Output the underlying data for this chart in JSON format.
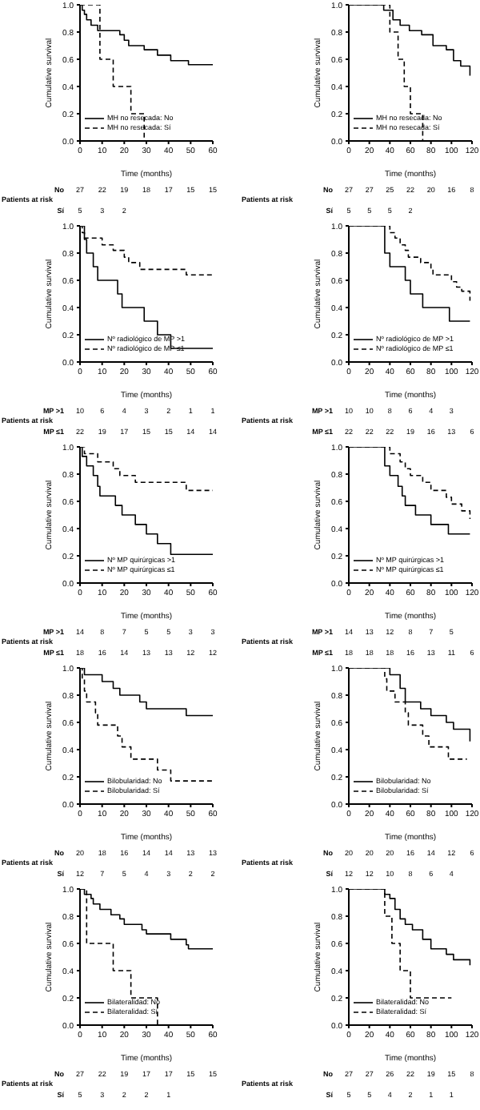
{
  "chart_data": [
    {
      "type": "step",
      "xlabel": "Time (months)",
      "ylabel": "Cumulative survival",
      "xlim": [
        0,
        60
      ],
      "xticks": [
        0,
        10,
        20,
        30,
        40,
        50,
        60
      ],
      "ylim": [
        0,
        1
      ],
      "yticks": [
        {
          "value": 0,
          "label": "0.0"
        },
        {
          "value": 0.2,
          "label": "0.2"
        },
        {
          "value": 0.4,
          "label": "0.4"
        },
        {
          "value": 0.6,
          "label": "0.6"
        },
        {
          "value": 0.8,
          "label": "0.8"
        },
        {
          "value": 1,
          "label": "1.0"
        }
      ],
      "grid": false,
      "legend": "bottom left",
      "marker": "none",
      "series": [
        {
          "name": "MH no resecada: No",
          "color": "#000000",
          "line_style": "solid",
          "x": [
            0,
            1,
            2,
            3,
            5,
            8,
            18,
            20,
            22,
            29,
            35,
            41,
            49,
            60
          ],
          "values": [
            1,
            0.96,
            0.93,
            0.89,
            0.85,
            0.81,
            0.78,
            0.74,
            0.7,
            0.67,
            0.63,
            0.59,
            0.56,
            0.56
          ]
        },
        {
          "name": "MH no resecada: Sí",
          "color": "#000000",
          "line_style": "dashed",
          "x": [
            0,
            9,
            15,
            23,
            29
          ],
          "values": [
            1,
            0.6,
            0.4,
            0.2,
            0
          ]
        }
      ],
      "annotations": [
        "Patients at risk",
        "No\t27\t22\t19\t18\t17\t15\t15",
        "Sí\t5\t3\t2"
      ]
    },
    {
      "type": "step",
      "xlabel": "Time (months)",
      "ylabel": "Cumulative survival",
      "xlim": [
        0,
        120
      ],
      "xticks": [
        0,
        20,
        40,
        60,
        80,
        100,
        120
      ],
      "ylim": [
        0,
        1
      ],
      "yticks": [
        {
          "value": 0,
          "label": "0.0"
        },
        {
          "value": 0.2,
          "label": "0.2"
        },
        {
          "value": 0.4,
          "label": "0.4"
        },
        {
          "value": 0.6,
          "label": "0.6"
        },
        {
          "value": 0.8,
          "label": "0.8"
        },
        {
          "value": 1,
          "label": "1.0"
        }
      ],
      "grid": false,
      "legend": "bottom left",
      "marker": "none",
      "series": [
        {
          "name": "MH no resecada: No",
          "color": "#000000",
          "line_style": "solid",
          "x": [
            0,
            34,
            43,
            50,
            59,
            71,
            82,
            95,
            102,
            109,
            118
          ],
          "values": [
            1,
            0.96,
            0.89,
            0.85,
            0.81,
            0.78,
            0.7,
            0.67,
            0.59,
            0.55,
            0.48
          ]
        },
        {
          "name": "MH no resecada: Sí",
          "color": "#000000",
          "line_style": "dashed",
          "x": [
            0,
            40,
            48,
            54,
            60,
            72
          ],
          "values": [
            1,
            0.8,
            0.6,
            0.4,
            0.2,
            0
          ]
        }
      ],
      "annotations": [
        "Patients at risk",
        "No\t27\t27\t25\t22\t20\t16\t8",
        "Sí\t5\t5\t5\t2"
      ]
    },
    {
      "type": "step",
      "xlabel": "Time (months)",
      "ylabel": "Cumulative survival",
      "xlim": [
        0,
        60
      ],
      "xticks": [
        0,
        10,
        20,
        30,
        40,
        50,
        60
      ],
      "ylim": [
        0,
        1
      ],
      "yticks": [
        {
          "value": 0,
          "label": "0.0"
        },
        {
          "value": 0.2,
          "label": "0.2"
        },
        {
          "value": 0.4,
          "label": "0.4"
        },
        {
          "value": 0.6,
          "label": "0.6"
        },
        {
          "value": 0.8,
          "label": "0.8"
        },
        {
          "value": 1,
          "label": "1.0"
        }
      ],
      "grid": false,
      "legend": "bottom left",
      "marker": "none",
      "series": [
        {
          "name": "Nº radiológico de MP >1",
          "color": "#000000",
          "line_style": "solid",
          "x": [
            0,
            2,
            3,
            6,
            8,
            17,
            19,
            29,
            35,
            41,
            60
          ],
          "values": [
            1,
            0.9,
            0.8,
            0.7,
            0.6,
            0.5,
            0.4,
            0.3,
            0.2,
            0.1,
            0.1
          ]
        },
        {
          "name": "Nº radiológico de MP ≤1",
          "color": "#000000",
          "line_style": "dashed",
          "x": [
            0,
            1,
            2,
            10,
            15,
            20,
            22,
            27,
            48,
            60
          ],
          "values": [
            1,
            0.95,
            0.91,
            0.86,
            0.82,
            0.77,
            0.73,
            0.68,
            0.64,
            0.64
          ]
        }
      ],
      "annotations": [
        "Patients at risk",
        "MP >1\t10\t6\t4\t3\t2\t1\t1",
        "MP ≤1\t22\t19\t17\t15\t15\t14\t14"
      ]
    },
    {
      "type": "step",
      "xlabel": "Time (months)",
      "ylabel": "Cumulative survival",
      "xlim": [
        0,
        120
      ],
      "xticks": [
        0,
        20,
        40,
        60,
        80,
        100,
        120
      ],
      "ylim": [
        0,
        1
      ],
      "yticks": [
        {
          "value": 0,
          "label": "0.0"
        },
        {
          "value": 0.2,
          "label": "0.2"
        },
        {
          "value": 0.4,
          "label": "0.4"
        },
        {
          "value": 0.6,
          "label": "0.6"
        },
        {
          "value": 0.8,
          "label": "0.8"
        },
        {
          "value": 1,
          "label": "1.0"
        }
      ],
      "grid": false,
      "legend": "bottom left",
      "marker": "none",
      "series": [
        {
          "name": "Nº radiológico de MP >1",
          "color": "#000000",
          "line_style": "solid",
          "x": [
            0,
            35,
            40,
            55,
            60,
            72,
            98,
            118
          ],
          "values": [
            1,
            0.8,
            0.7,
            0.6,
            0.5,
            0.4,
            0.3,
            0.3
          ]
        },
        {
          "name": "Nº radiológico de MP ≤1",
          "color": "#000000",
          "line_style": "dashed",
          "x": [
            0,
            40,
            45,
            50,
            55,
            58,
            70,
            80,
            82,
            100,
            105,
            110,
            118
          ],
          "values": [
            1,
            0.95,
            0.91,
            0.86,
            0.82,
            0.77,
            0.73,
            0.68,
            0.64,
            0.59,
            0.55,
            0.52,
            0.45
          ]
        }
      ],
      "annotations": [
        "Patients at risk",
        "MP >1\t10\t10\t8\t6\t4\t3",
        "MP ≤1\t22\t22\t22\t19\t16\t13\t6"
      ]
    },
    {
      "type": "step",
      "xlabel": "Time (months)",
      "ylabel": "Cumulative survival",
      "xlim": [
        0,
        60
      ],
      "xticks": [
        0,
        10,
        20,
        30,
        40,
        50,
        60
      ],
      "ylim": [
        0,
        1
      ],
      "yticks": [
        {
          "value": 0,
          "label": "0.0"
        },
        {
          "value": 0.2,
          "label": "0.2"
        },
        {
          "value": 0.4,
          "label": "0.4"
        },
        {
          "value": 0.6,
          "label": "0.6"
        },
        {
          "value": 0.8,
          "label": "0.8"
        },
        {
          "value": 1,
          "label": "1.0"
        }
      ],
      "grid": false,
      "legend": "bottom left",
      "marker": "none",
      "series": [
        {
          "name": "Nº MP quirúrgicas >1",
          "color": "#000000",
          "line_style": "solid",
          "x": [
            0,
            1,
            3,
            6,
            8,
            9,
            16,
            19,
            25,
            30,
            35,
            41,
            60
          ],
          "values": [
            1,
            0.93,
            0.86,
            0.79,
            0.71,
            0.64,
            0.57,
            0.5,
            0.43,
            0.36,
            0.29,
            0.21,
            0.21
          ]
        },
        {
          "name": "Nº MP quirúrgicas ≤1",
          "color": "#000000",
          "line_style": "dashed",
          "x": [
            0,
            2,
            8,
            15,
            18,
            25,
            48,
            60
          ],
          "values": [
            1,
            0.95,
            0.89,
            0.84,
            0.79,
            0.74,
            0.68,
            0.68
          ]
        }
      ],
      "annotations": [
        "Patients at risk",
        "MP >1\t14\t8\t7\t5\t5\t3\t3",
        "MP ≤1\t18\t16\t14\t13\t13\t12\t12"
      ]
    },
    {
      "type": "step",
      "xlabel": "Time (months)",
      "ylabel": "Cumulative survival",
      "xlim": [
        0,
        120
      ],
      "xticks": [
        0,
        20,
        40,
        60,
        80,
        100,
        120
      ],
      "ylim": [
        0,
        1
      ],
      "yticks": [
        {
          "value": 0,
          "label": "0.0"
        },
        {
          "value": 0.2,
          "label": "0.2"
        },
        {
          "value": 0.4,
          "label": "0.4"
        },
        {
          "value": 0.6,
          "label": "0.6"
        },
        {
          "value": 0.8,
          "label": "0.8"
        },
        {
          "value": 1,
          "label": "1.0"
        }
      ],
      "grid": false,
      "legend": "bottom left",
      "marker": "none",
      "series": [
        {
          "name": "Nº MP quirúrgicas >1",
          "color": "#000000",
          "line_style": "solid",
          "x": [
            0,
            35,
            40,
            48,
            52,
            55,
            65,
            80,
            97,
            118
          ],
          "values": [
            1,
            0.86,
            0.79,
            0.71,
            0.64,
            0.57,
            0.5,
            0.43,
            0.36,
            0.36
          ]
        },
        {
          "name": "Nº MP quirúrgicas ≤1",
          "color": "#000000",
          "line_style": "dashed",
          "x": [
            0,
            40,
            50,
            55,
            60,
            72,
            80,
            95,
            100,
            110,
            118
          ],
          "values": [
            1,
            0.95,
            0.89,
            0.84,
            0.79,
            0.74,
            0.68,
            0.63,
            0.58,
            0.53,
            0.47
          ]
        }
      ],
      "annotations": [
        "Patients at risk",
        "MP >1\t14\t13\t12\t8\t7\t5",
        "MP ≤1\t18\t18\t18\t16\t13\t11\t6"
      ]
    },
    {
      "type": "step",
      "xlabel": "Time (months)",
      "ylabel": "Cumulative survival",
      "xlim": [
        0,
        60
      ],
      "xticks": [
        0,
        10,
        20,
        30,
        40,
        50,
        60
      ],
      "ylim": [
        0,
        1
      ],
      "yticks": [
        {
          "value": 0,
          "label": "0.0"
        },
        {
          "value": 0.2,
          "label": "0.2"
        },
        {
          "value": 0.4,
          "label": "0.4"
        },
        {
          "value": 0.6,
          "label": "0.6"
        },
        {
          "value": 0.8,
          "label": "0.8"
        },
        {
          "value": 1,
          "label": "1.0"
        }
      ],
      "grid": false,
      "legend": "bottom left",
      "marker": "none",
      "series": [
        {
          "name": "Bilobularidad: No",
          "color": "#000000",
          "line_style": "solid",
          "x": [
            0,
            2,
            10,
            15,
            18,
            27,
            30,
            48,
            60
          ],
          "values": [
            1,
            0.95,
            0.9,
            0.85,
            0.8,
            0.75,
            0.7,
            0.65,
            0.65
          ]
        },
        {
          "name": "Bilobularidad: Sí",
          "color": "#000000",
          "line_style": "dashed",
          "x": [
            0,
            1,
            2,
            3,
            7,
            8,
            17,
            19,
            23,
            35,
            41,
            60
          ],
          "values": [
            1,
            0.92,
            0.83,
            0.75,
            0.67,
            0.58,
            0.5,
            0.42,
            0.33,
            0.25,
            0.17,
            0.17
          ]
        }
      ],
      "annotations": [
        "Patients at risk",
        "No\t20\t18\t16\t14\t14\t13\t13",
        "Sí\t12\t7\t5\t4\t3\t2\t2"
      ]
    },
    {
      "type": "step",
      "xlabel": "Time (months)",
      "ylabel": "Cumulative survival",
      "xlim": [
        0,
        120
      ],
      "xticks": [
        0,
        20,
        40,
        60,
        80,
        100,
        120
      ],
      "ylim": [
        0,
        1
      ],
      "yticks": [
        {
          "value": 0,
          "label": "0.0"
        },
        {
          "value": 0.2,
          "label": "0.2"
        },
        {
          "value": 0.4,
          "label": "0.4"
        },
        {
          "value": 0.6,
          "label": "0.6"
        },
        {
          "value": 0.8,
          "label": "0.8"
        },
        {
          "value": 1,
          "label": "1.0"
        }
      ],
      "grid": false,
      "legend": "bottom left",
      "marker": "none",
      "series": [
        {
          "name": "Bilobularidad: No",
          "color": "#000000",
          "line_style": "solid",
          "x": [
            0,
            40,
            50,
            55,
            70,
            80,
            95,
            102,
            118
          ],
          "values": [
            1,
            0.95,
            0.85,
            0.75,
            0.7,
            0.65,
            0.6,
            0.55,
            0.46
          ]
        },
        {
          "name": "Bilobularidad: Sí",
          "color": "#000000",
          "line_style": "dashed",
          "x": [
            0,
            35,
            37,
            45,
            55,
            58,
            72,
            78,
            97,
            115
          ],
          "values": [
            1,
            0.92,
            0.83,
            0.75,
            0.67,
            0.58,
            0.5,
            0.42,
            0.33,
            0.33
          ]
        }
      ],
      "annotations": [
        "Patients at risk",
        "No\t20\t20\t20\t16\t14\t12\t6",
        "Sí\t12\t12\t10\t8\t6\t4"
      ]
    },
    {
      "type": "step",
      "xlabel": "Time (months)",
      "ylabel": "Cumulative survival",
      "xlim": [
        0,
        60
      ],
      "xticks": [
        0,
        10,
        20,
        30,
        40,
        50,
        60
      ],
      "ylim": [
        0,
        1
      ],
      "yticks": [
        {
          "value": 0,
          "label": "0.0"
        },
        {
          "value": 0.2,
          "label": "0.2"
        },
        {
          "value": 0.4,
          "label": "0.4"
        },
        {
          "value": 0.6,
          "label": "0.6"
        },
        {
          "value": 0.8,
          "label": "0.8"
        },
        {
          "value": 1,
          "label": "1.0"
        }
      ],
      "grid": false,
      "legend": "bottom left",
      "marker": "none",
      "series": [
        {
          "name": "Bilateralidad: No",
          "color": "#000000",
          "line_style": "solid",
          "x": [
            0,
            2,
            5,
            6,
            9,
            14,
            18,
            20,
            28,
            30,
            41,
            48,
            49,
            60
          ],
          "values": [
            1,
            0.96,
            0.93,
            0.89,
            0.85,
            0.81,
            0.78,
            0.74,
            0.7,
            0.67,
            0.63,
            0.59,
            0.56,
            0.56
          ]
        },
        {
          "name": "Bilateralidad: Sí",
          "color": "#000000",
          "line_style": "dashed",
          "x": [
            0,
            3,
            15,
            23,
            35
          ],
          "values": [
            1,
            0.6,
            0.4,
            0.2,
            0
          ]
        }
      ],
      "annotations": [
        "Patients at risk",
        "No\t27\t22\t19\t17\t17\t15\t15",
        "Sí\t5\t3\t2\t2\t1"
      ]
    },
    {
      "type": "step",
      "xlabel": "Time (months)",
      "ylabel": "Cumulative survival",
      "xlim": [
        0,
        120
      ],
      "xticks": [
        0,
        20,
        40,
        60,
        80,
        100,
        120
      ],
      "ylim": [
        0,
        1
      ],
      "yticks": [
        {
          "value": 0,
          "label": "0.0"
        },
        {
          "value": 0.2,
          "label": "0.2"
        },
        {
          "value": 0.4,
          "label": "0.4"
        },
        {
          "value": 0.6,
          "label": "0.6"
        },
        {
          "value": 0.8,
          "label": "0.8"
        },
        {
          "value": 1,
          "label": "1.0"
        }
      ],
      "grid": false,
      "legend": "bottom left",
      "marker": "none",
      "series": [
        {
          "name": "Bilateralidad: No",
          "color": "#000000",
          "line_style": "solid",
          "x": [
            0,
            35,
            40,
            45,
            50,
            55,
            62,
            72,
            80,
            95,
            102,
            118
          ],
          "values": [
            1,
            0.96,
            0.93,
            0.85,
            0.78,
            0.74,
            0.7,
            0.63,
            0.56,
            0.52,
            0.48,
            0.44
          ]
        },
        {
          "name": "Bilateralidad: Sí",
          "color": "#000000",
          "line_style": "dashed",
          "x": [
            0,
            35,
            42,
            50,
            60,
            100
          ],
          "values": [
            1,
            0.8,
            0.6,
            0.4,
            0.2,
            0.2
          ]
        }
      ],
      "annotations": [
        "Patients at risk",
        "No\t27\t27\t26\t22\t19\t15\t8",
        "Sí\t5\t5\t4\t2\t1\t1"
      ]
    }
  ]
}
